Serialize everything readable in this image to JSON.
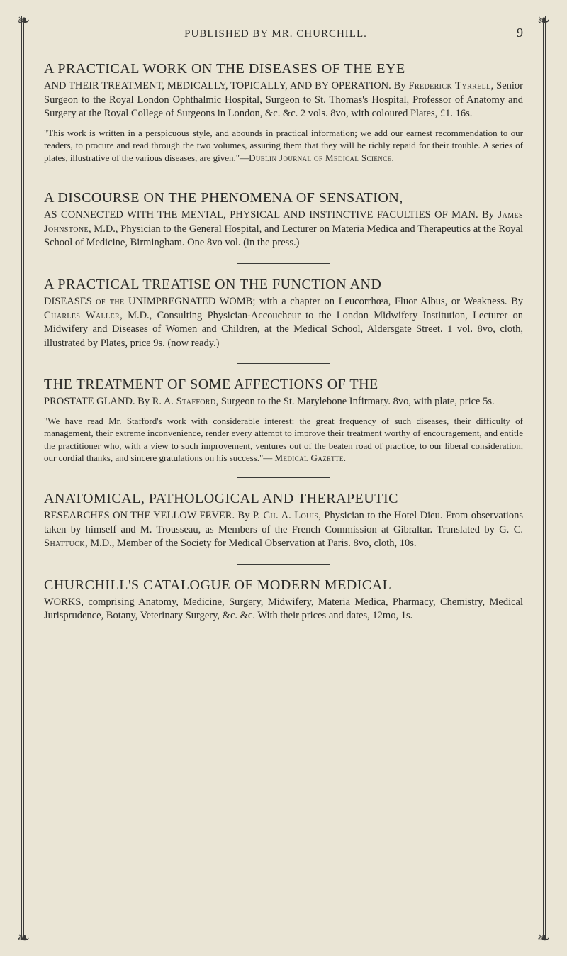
{
  "page": {
    "header_title": "PUBLISHED BY MR. CHURCHILL.",
    "page_number": "9",
    "background_color": "#eae5d5",
    "text_color": "#2a2a28",
    "rule_color": "#3a3a38",
    "heading_fontsize": 20,
    "body_fontsize": 14.5,
    "quote_fontsize": 13,
    "ornament_glyph": "❧"
  },
  "entries": [
    {
      "heading": "A PRACTICAL WORK ON THE DISEASES OF THE EYE",
      "body_pre": "AND THEIR TREATMENT, MEDICALLY, TOPICALLY, AND BY OPERATION. By ",
      "author": "Frederick Tyrrell",
      "body_post": ", Senior Surgeon to the Royal London Ophthalmic Hospital, Surgeon to St. Thomas's Hospital, Professor of Anatomy and Surgery at the Royal College of Surgeons in London, &c. &c. 2 vols. 8vo, with coloured Plates, £1. 16s.",
      "quote": "\"This work is written in a perspicuous style, and abounds in practical information; we add our earnest recommendation to our readers, to procure and read through the two volumes, assuring them that they will be richly repaid for their trouble. A series of plates, illustrative of the various diseases, are given.\"—",
      "quote_source": "Dublin Journal of Medical Science."
    },
    {
      "heading": "A DISCOURSE ON THE PHENOMENA OF SENSATION,",
      "body_pre": "AS CONNECTED WITH THE MENTAL, PHYSICAL AND INSTINCTIVE FACULTIES OF MAN. By ",
      "author": "James Johnstone",
      "body_post": ", M.D., Physician to the General Hospital, and Lecturer on Materia Medica and Therapeutics at the Royal School of Medicine, Birmingham. One 8vo vol. (in the press.)"
    },
    {
      "heading": "A PRACTICAL TREATISE ON THE FUNCTION AND",
      "body_pre": "DISEASES ",
      "sc1": "of the",
      "body_mid1": " UNIMPREGNATED WOMB; with a chapter on Leucorrhœa, Fluor Albus, or Weakness. By ",
      "author": "Charles Waller",
      "body_post": ", M.D., Consulting Physician-Accoucheur to the London Midwifery Institution, Lecturer on Midwifery and Diseases of Women and Children, at the Medical School, Aldersgate Street. 1 vol. 8vo, cloth, illustrated by Plates, price 9s. (now ready.)"
    },
    {
      "heading": "THE TREATMENT OF SOME AFFECTIONS OF THE",
      "body_pre": "PROSTATE GLAND. By R. A. ",
      "author": "Stafford",
      "body_post": ", Surgeon to the St. Marylebone Infirmary. 8vo, with plate, price 5s.",
      "quote": "\"We have read Mr. Stafford's work with considerable interest: the great frequency of such diseases, their difficulty of management, their extreme inconvenience, render every attempt to improve their treatment worthy of encouragement, and entitle the practitioner who, with a view to such improvement, ventures out of the beaten road of practice, to our liberal consideration, our cordial thanks, and sincere gratulations on his success.\"— ",
      "quote_source": "Medical Gazette."
    },
    {
      "heading": "ANATOMICAL, PATHOLOGICAL AND THERAPEUTIC",
      "body_pre": "RESEARCHES ON THE YELLOW FEVER. By P. ",
      "sc1": "Ch.",
      "body_mid1": " A. ",
      "sc2": "Louis",
      "body_mid2": ", Physician to the Hotel Dieu. From observations taken by himself and M. Trousseau, as Members of the French Commission at Gibraltar. Translated by G. C. ",
      "author": "Shattuck",
      "body_post": ", M.D., Member of the Society for Medical Observation at Paris. 8vo, cloth, 10s."
    },
    {
      "heading": "CHURCHILL'S CATALOGUE OF MODERN MEDICAL",
      "body_pre": "WORKS, comprising Anatomy, Medicine, Surgery, Midwifery, Materia Medica, Pharmacy, Chemistry, Medical Jurisprudence, Botany, Veterinary Surgery, &c. &c. With their prices and dates, 12mo, 1s."
    }
  ]
}
